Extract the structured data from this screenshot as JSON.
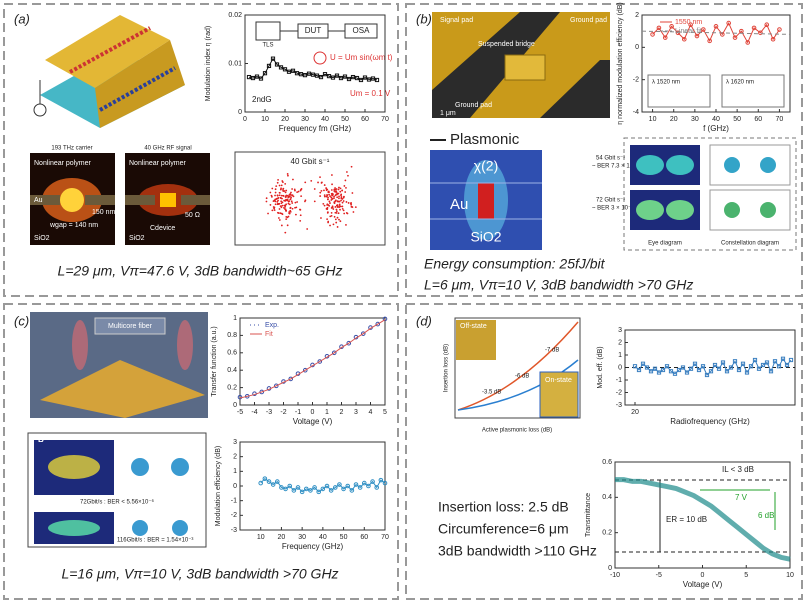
{
  "panels": [
    {
      "label": "(a)",
      "caption": "L=29 μm, Vπ=47.6 V, 3dB bandwidth~65 GHz",
      "texts": [
        "TLS",
        "DUT",
        "OSA",
        "U = Um sin(ωm t)",
        "Um = 0.1 V",
        "2ndG",
        "193 THz carrier",
        "40 GHz RF signal",
        "Nonlinear polymer",
        "Nonlinear polymer",
        "Au",
        "SiO2",
        "SiO2",
        "wgap = 140 nm",
        "150 nm",
        "50 Ω",
        "Cdevice",
        "40 Gbit s⁻¹"
      ],
      "charts": [
        {
          "type": "line",
          "xlabel": "Frequency fm (GHz)",
          "ylabel": "Modulation index η (rad)",
          "xlim": [
            0,
            70
          ],
          "ylim": [
            0,
            0.02
          ],
          "xticks": [
            0,
            10,
            20,
            30,
            40,
            50,
            60,
            70
          ],
          "yticks": [
            0,
            0.01,
            0.02
          ],
          "x": [
            2,
            4,
            6,
            8,
            10,
            12,
            14,
            16,
            18,
            20,
            22,
            24,
            26,
            28,
            30,
            32,
            34,
            36,
            38,
            40,
            42,
            44,
            46,
            48,
            50,
            52,
            54,
            56,
            58,
            60,
            62,
            64,
            66
          ],
          "series": [
            {
              "color": "#111111",
              "line": true,
              "marker": "square",
              "values": [
                0.0072,
                0.007,
                0.0073,
                0.0069,
                0.008,
                0.0095,
                0.011,
                0.0098,
                0.0092,
                0.0088,
                0.0083,
                0.0085,
                0.008,
                0.0078,
                0.0076,
                0.0079,
                0.0077,
                0.0075,
                0.0072,
                0.0078,
                0.0074,
                0.0071,
                0.0075,
                0.007,
                0.0073,
                0.0068,
                0.0072,
                0.007,
                0.0066,
                0.0071,
                0.0067,
                0.0069,
                0.0066
              ]
            }
          ]
        }
      ]
    },
    {
      "label": "(b)",
      "caption": "Energy consumption: 25fJ/bit",
      "caption2": "L=6 μm, Vπ=10 V, 3dB bandwidth >70 GHz",
      "texts": [
        "Signal pad",
        "Ground pad",
        "Ground pad",
        "Suspended bridge",
        "1 μm",
        "λ 1520 nm",
        "λ 1620 nm",
        "Plasmonic",
        "χ(2)",
        "Au",
        "SiO2",
        "54 Gbit s⁻¹",
        "~ BER 7.3 × 10⁻⁵",
        "72 Gbit s⁻¹",
        "~ BER 3 × 10⁻³",
        "Eye diagram",
        "Constellation diagram"
      ],
      "charts": [
        {
          "type": "line",
          "xlabel": "f (GHz)",
          "ylabel": "η normalized modulation efficiency (dB)",
          "xlim": [
            5,
            75
          ],
          "ylim": [
            -4,
            2
          ],
          "xticks": [
            10,
            20,
            30,
            40,
            50,
            60,
            70
          ],
          "yticks": [
            -4,
            -2,
            0,
            2
          ],
          "x": [
            10,
            13,
            16,
            19,
            22,
            25,
            28,
            31,
            34,
            37,
            40,
            43,
            46,
            49,
            52,
            55,
            58,
            61,
            64,
            67,
            70
          ],
          "legend": true,
          "series": [
            {
              "name": "1550 nm",
              "color": "#e0453a",
              "line": true,
              "marker": "circle",
              "values": [
                0.8,
                1.2,
                0.6,
                1.3,
                0.9,
                0.5,
                1.4,
                0.7,
                1.1,
                0.4,
                1.3,
                0.8,
                1.5,
                0.6,
                1.0,
                0.3,
                1.2,
                0.9,
                1.4,
                0.5,
                1.1
              ]
            },
            {
              "name": "Linear fit",
              "color": "#888888",
              "line": true,
              "dash": true,
              "x": [
                5,
                75
              ],
              "values": [
                1.0,
                0.8
              ]
            }
          ]
        }
      ]
    },
    {
      "label": "(c)",
      "caption": "L=16 μm, Vπ=10 V, 3dB bandwidth >70 GHz",
      "texts": [
        "Multicore fiber",
        "B",
        "72Gbit/s : BER < 5.56×10⁻⁶",
        "116Gbit/s : BER = 1.54×10⁻³"
      ],
      "charts": [
        {
          "type": "line",
          "xlabel": "Voltage (V)",
          "ylabel": "Transfer function (a.u.)",
          "xlim": [
            -5,
            5
          ],
          "ylim": [
            0,
            1
          ],
          "xticks": [
            -5,
            -4,
            -3,
            -2,
            -1,
            0,
            1,
            2,
            3,
            4,
            5
          ],
          "yticks": [
            0,
            0.2,
            0.4,
            0.6,
            0.8,
            1
          ],
          "x": [
            -5,
            -4.5,
            -4,
            -3.5,
            -3,
            -2.5,
            -2,
            -1.5,
            -1,
            -0.5,
            0,
            0.5,
            1,
            1.5,
            2,
            2.5,
            3,
            3.5,
            4,
            4.5,
            5
          ],
          "legend": true,
          "series": [
            {
              "name": "Exp.",
              "color": "#3a4fa8",
              "line": false,
              "marker": "circle",
              "values": [
                0.09,
                0.1,
                0.13,
                0.15,
                0.19,
                0.22,
                0.27,
                0.3,
                0.36,
                0.4,
                0.46,
                0.5,
                0.56,
                0.6,
                0.67,
                0.71,
                0.78,
                0.82,
                0.89,
                0.93,
                0.99
              ]
            },
            {
              "name": "Fit",
              "color": "#d9534f",
              "line": true,
              "values": [
                0.08,
                0.1,
                0.12,
                0.15,
                0.18,
                0.22,
                0.26,
                0.3,
                0.35,
                0.4,
                0.45,
                0.5,
                0.55,
                0.6,
                0.66,
                0.71,
                0.77,
                0.82,
                0.88,
                0.93,
                0.98
              ]
            }
          ]
        },
        {
          "type": "line",
          "xlabel": "Frequency (GHz)",
          "ylabel": "Modulation efficiency (dB)",
          "xlim": [
            0,
            70
          ],
          "ylim": [
            -3,
            3
          ],
          "xticks": [
            10,
            20,
            30,
            40,
            50,
            60,
            70
          ],
          "yticks": [
            -3,
            -2,
            -1,
            0,
            1,
            2,
            3
          ],
          "x": [
            10,
            12,
            14,
            16,
            18,
            20,
            22,
            24,
            26,
            28,
            30,
            32,
            34,
            36,
            38,
            40,
            42,
            44,
            46,
            48,
            50,
            52,
            54,
            56,
            58,
            60,
            62,
            64,
            66,
            68,
            70
          ],
          "series": [
            {
              "color": "#2f8fc4",
              "line": true,
              "marker": "circle",
              "values": [
                0.2,
                0.5,
                0.3,
                0.1,
                0.3,
                -0.1,
                -0.2,
                0.0,
                -0.3,
                -0.1,
                -0.4,
                -0.2,
                -0.3,
                -0.1,
                -0.4,
                -0.2,
                0.0,
                -0.3,
                -0.1,
                0.1,
                -0.2,
                0.0,
                -0.3,
                0.1,
                -0.1,
                0.2,
                0.0,
                0.3,
                -0.1,
                0.4,
                0.2
              ]
            }
          ]
        }
      ]
    },
    {
      "label": "(d)",
      "caption": "Insertion loss: 2.5 dB",
      "caption2": "Circumference=6 μm",
      "caption3": "3dB bandwidth >110 GHz",
      "texts": [
        "-7 dB",
        "-6 dB",
        "-3.5 dB",
        "On-state",
        "Off-state",
        "Insertion loss (dB)",
        "Active plasmonic loss (dB)",
        "IL < 3 dB",
        "7 V",
        "6 dB",
        "ER = 10 dB"
      ],
      "charts": [
        {
          "type": "line",
          "xlabel": "Radiofrequency (GHz)",
          "ylabel": "Mod. eff. (dB)",
          "xlim": [
            15,
            100
          ],
          "ylim": [
            -3,
            3
          ],
          "xticks": [
            20
          ],
          "yticks": [
            -3,
            -2,
            -1,
            0,
            1,
            2,
            3
          ],
          "zero_line": true,
          "x": [
            20,
            22,
            24,
            26,
            28,
            30,
            32,
            34,
            36,
            38,
            40,
            42,
            44,
            46,
            48,
            50,
            52,
            54,
            56,
            58,
            60,
            62,
            64,
            66,
            68,
            70,
            72,
            74,
            76,
            78,
            80,
            82,
            84,
            86,
            88,
            90,
            92,
            94,
            96,
            98
          ],
          "series": [
            {
              "color": "#3a7fc0",
              "line": true,
              "marker": "square",
              "values": [
                0.1,
                -0.2,
                0.3,
                0.0,
                -0.3,
                -0.1,
                -0.4,
                -0.2,
                0.1,
                -0.3,
                -0.5,
                -0.2,
                0.0,
                -0.4,
                -0.1,
                0.3,
                -0.2,
                0.1,
                -0.6,
                -0.3,
                0.2,
                -0.1,
                0.4,
                -0.3,
                0.0,
                0.5,
                -0.2,
                0.3,
                -0.4,
                0.1,
                0.6,
                -0.1,
                0.2,
                0.4,
                -0.3,
                0.5,
                0.1,
                0.7,
                0.2,
                0.6
              ]
            }
          ]
        },
        {
          "type": "line",
          "xlabel": "Voltage (V)",
          "ylabel": "Transmittance",
          "xlim": [
            -10,
            10
          ],
          "ylim": [
            0,
            0.6
          ],
          "xticks": [
            -10,
            -5,
            0,
            5,
            10
          ],
          "yticks": [
            0,
            0.2,
            0.4,
            0.6
          ],
          "x": [
            -10,
            -9,
            -8,
            -7,
            -6,
            -5,
            -4,
            -3,
            -2,
            -1,
            0,
            1,
            2,
            3,
            4,
            5,
            6,
            7,
            8,
            9,
            10
          ],
          "series": [
            {
              "color": "#1d8a8a",
              "line": true,
              "width": 5,
              "values": [
                0.5,
                0.5,
                0.49,
                0.49,
                0.48,
                0.47,
                0.46,
                0.45,
                0.43,
                0.41,
                0.38,
                0.35,
                0.31,
                0.27,
                0.23,
                0.19,
                0.15,
                0.11,
                0.08,
                0.06,
                0.05
              ]
            }
          ]
        }
      ]
    }
  ]
}
